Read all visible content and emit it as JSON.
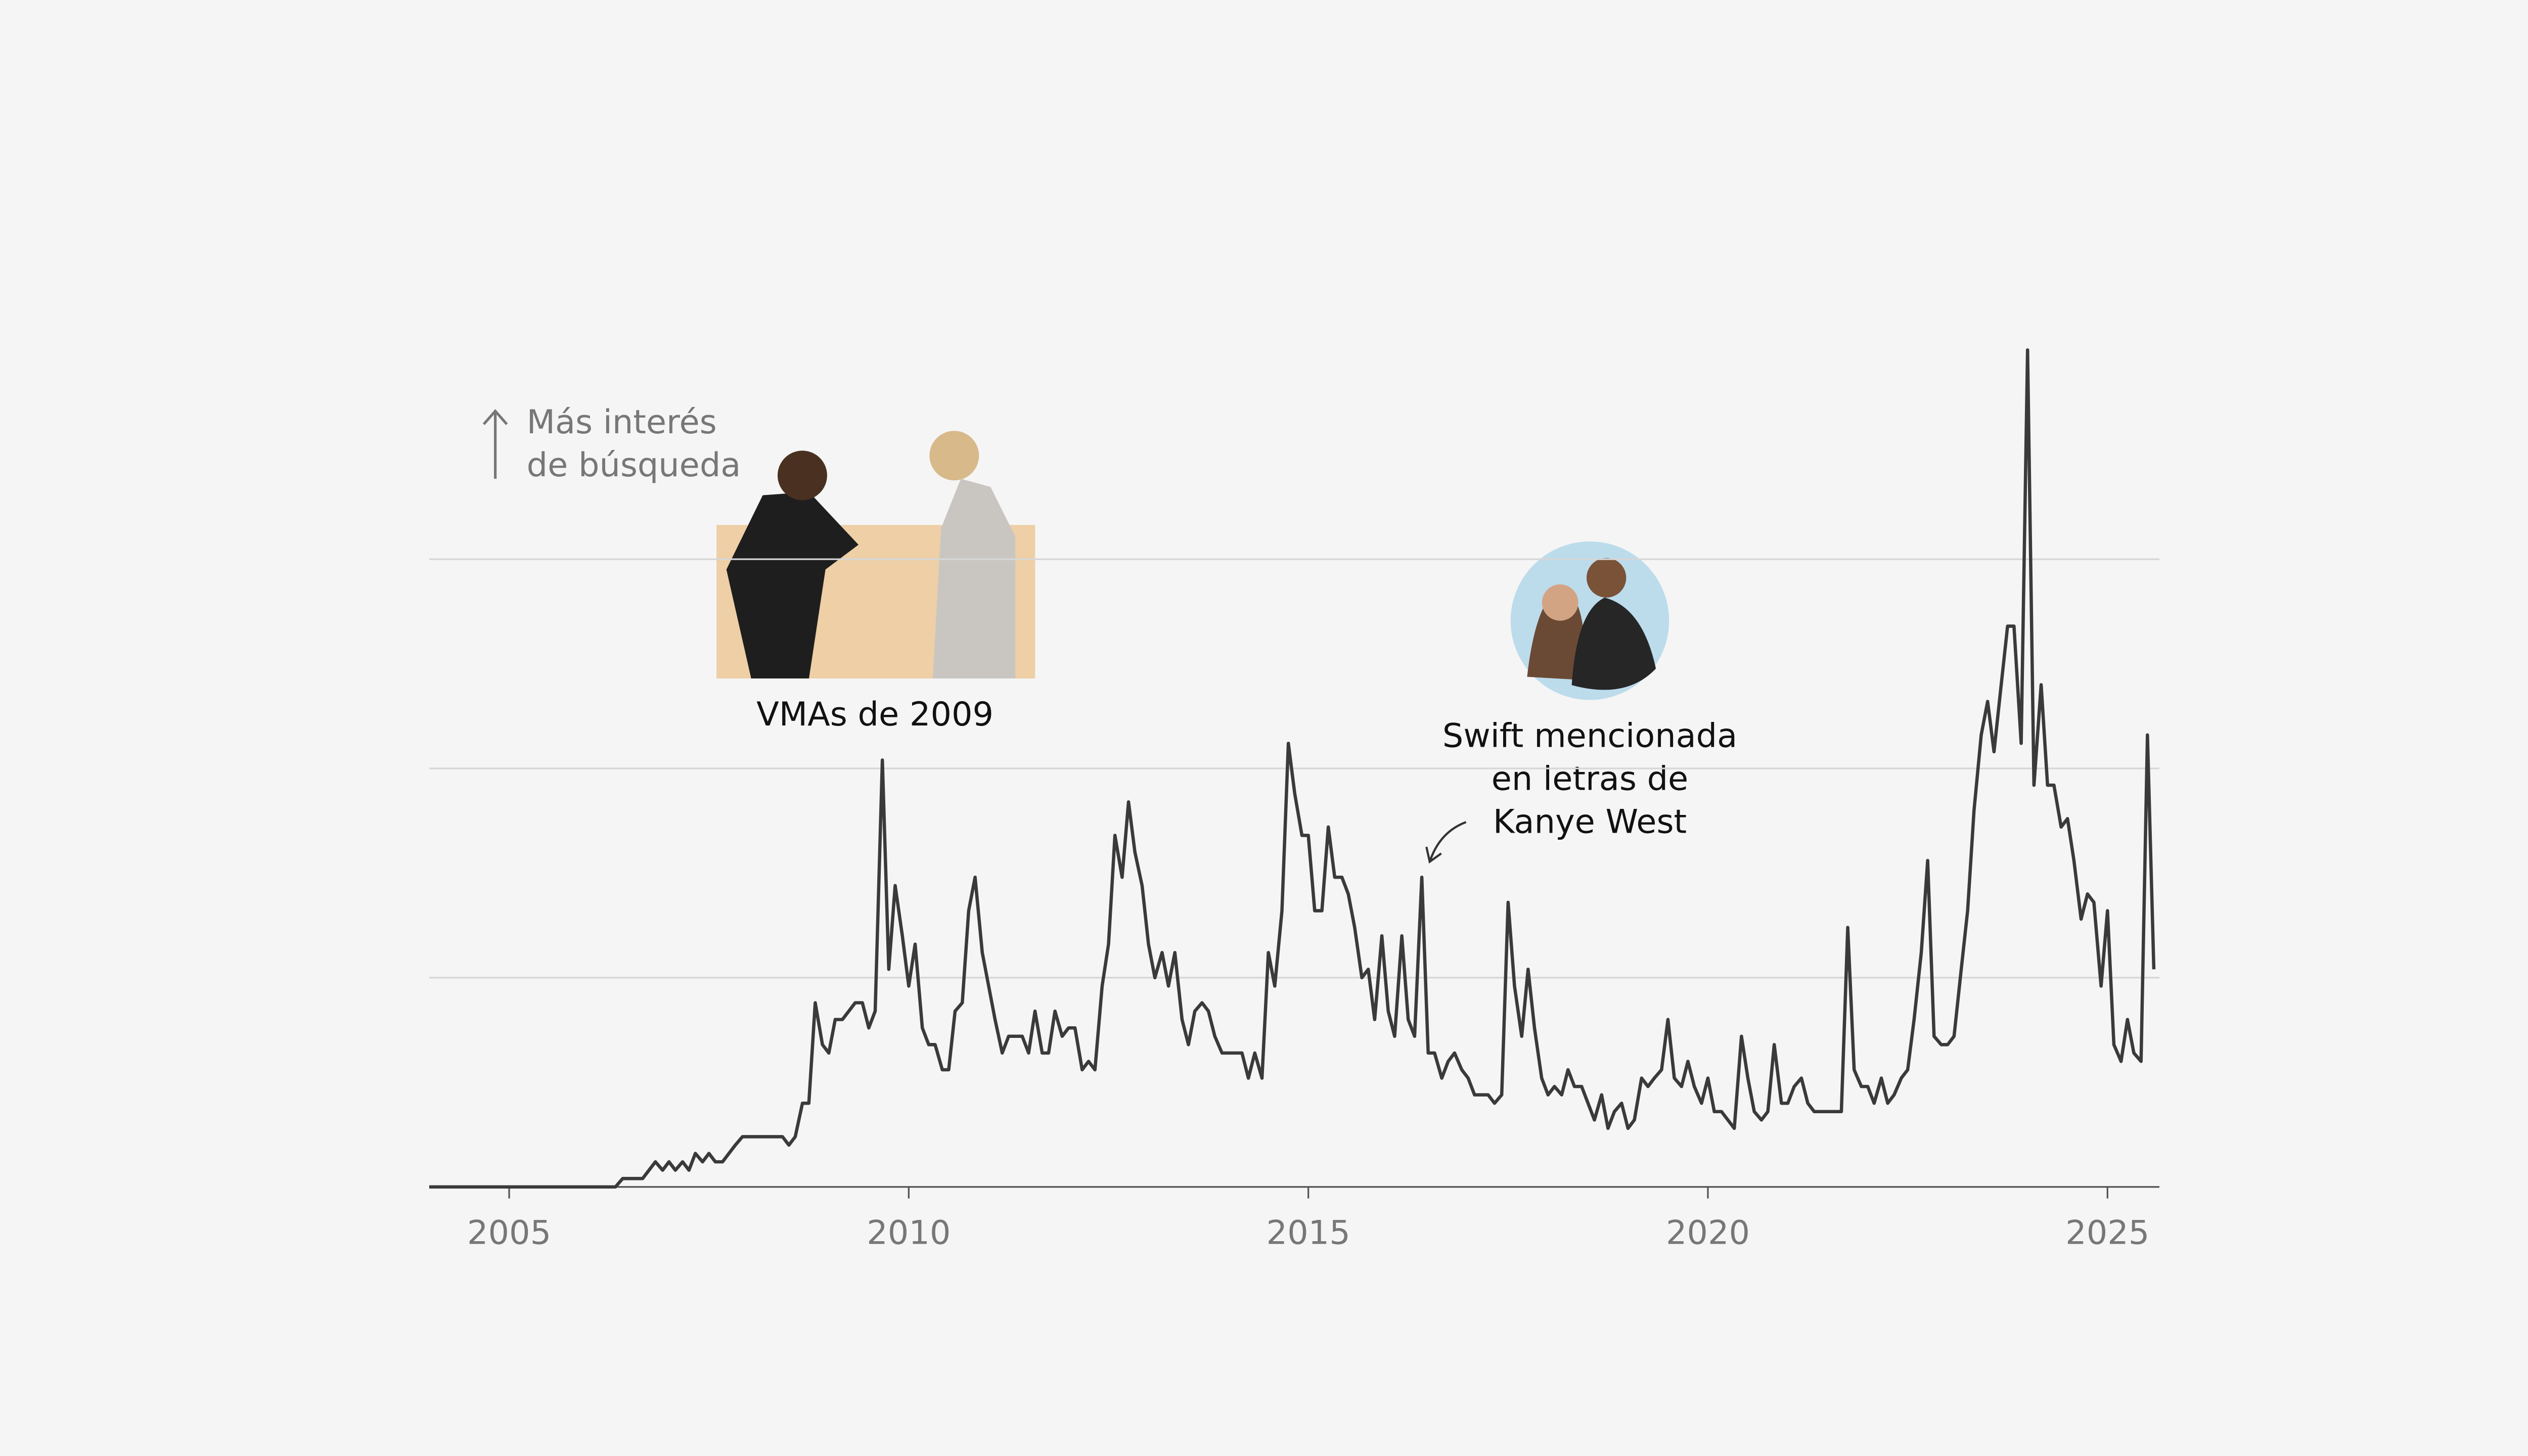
{
  "chart_data": {
    "type": "line",
    "annotations": {
      "axis_note": [
        "Más interés",
        "de búsqueda"
      ],
      "vmas": "VMAs de 2009",
      "lyrics": [
        "Swift mencionada",
        "en letras de",
        "Kanye West"
      ]
    },
    "color": "#3a3a3a",
    "xlim": [
      2004,
      2025.65
    ],
    "xticks": [
      2005,
      2010,
      2015,
      2020,
      2025
    ],
    "ylim": [
      0,
      100
    ],
    "yticks": [
      0,
      25,
      50,
      75
    ],
    "grid": true,
    "x": [
      2004,
      2004.08,
      2004.17,
      2004.25,
      2004.33,
      2004.42,
      2004.5,
      2004.58,
      2004.67,
      2004.75,
      2004.83,
      2004.92,
      2005,
      2005.08,
      2005.17,
      2005.25,
      2005.33,
      2005.42,
      2005.5,
      2005.58,
      2005.67,
      2005.75,
      2005.83,
      2005.92,
      2006,
      2006.08,
      2006.17,
      2006.25,
      2006.33,
      2006.42,
      2006.5,
      2006.58,
      2006.67,
      2006.75,
      2006.83,
      2006.92,
      2007,
      2007.08,
      2007.17,
      2007.25,
      2007.33,
      2007.42,
      2007.5,
      2007.58,
      2007.67,
      2007.75,
      2007.83,
      2007.92,
      2008,
      2008.08,
      2008.17,
      2008.25,
      2008.33,
      2008.42,
      2008.5,
      2008.58,
      2008.67,
      2008.75,
      2008.83,
      2008.92,
      2009,
      2009.08,
      2009.17,
      2009.25,
      2009.33,
      2009.42,
      2009.5,
      2009.58,
      2009.67,
      2009.75,
      2009.83,
      2009.92,
      2010,
      2010.08,
      2010.17,
      2010.25,
      2010.33,
      2010.42,
      2010.5,
      2010.58,
      2010.67,
      2010.75,
      2010.83,
      2010.92,
      2011,
      2011.08,
      2011.17,
      2011.25,
      2011.33,
      2011.42,
      2011.5,
      2011.58,
      2011.67,
      2011.75,
      2011.83,
      2011.92,
      2012,
      2012.08,
      2012.17,
      2012.25,
      2012.33,
      2012.42,
      2012.5,
      2012.58,
      2012.67,
      2012.75,
      2012.83,
      2012.92,
      2013,
      2013.08,
      2013.17,
      2013.25,
      2013.33,
      2013.42,
      2013.5,
      2013.58,
      2013.67,
      2013.75,
      2013.83,
      2013.92,
      2014,
      2014.08,
      2014.17,
      2014.25,
      2014.33,
      2014.42,
      2014.5,
      2014.58,
      2014.67,
      2014.75,
      2014.83,
      2014.92,
      2015,
      2015.08,
      2015.17,
      2015.25,
      2015.33,
      2015.42,
      2015.5,
      2015.58,
      2015.67,
      2015.75,
      2015.83,
      2015.92,
      2016,
      2016.08,
      2016.17,
      2016.25,
      2016.33,
      2016.42,
      2016.5,
      2016.58,
      2016.67,
      2016.75,
      2016.83,
      2016.92,
      2017,
      2017.08,
      2017.17,
      2017.25,
      2017.33,
      2017.42,
      2017.5,
      2017.58,
      2017.67,
      2017.75,
      2017.83,
      2017.92,
      2018,
      2018.08,
      2018.17,
      2018.25,
      2018.33,
      2018.42,
      2018.5,
      2018.58,
      2018.67,
      2018.75,
      2018.83,
      2018.92,
      2019,
      2019.08,
      2019.17,
      2019.25,
      2019.33,
      2019.42,
      2019.5,
      2019.58,
      2019.67,
      2019.75,
      2019.83,
      2019.92,
      2020,
      2020.08,
      2020.17,
      2020.25,
      2020.33,
      2020.42,
      2020.5,
      2020.58,
      2020.67,
      2020.75,
      2020.83,
      2020.92,
      2021,
      2021.08,
      2021.17,
      2021.25,
      2021.33,
      2021.42,
      2021.5,
      2021.58,
      2021.67,
      2021.75,
      2021.83,
      2021.92,
      2022,
      2022.08,
      2022.17,
      2022.25,
      2022.33,
      2022.42,
      2022.5,
      2022.58,
      2022.67,
      2022.75,
      2022.83,
      2022.92,
      2023,
      2023.08,
      2023.17,
      2023.25,
      2023.33,
      2023.42,
      2023.5,
      2023.58,
      2023.67,
      2023.75,
      2023.83,
      2023.92,
      2024,
      2024.08,
      2024.17,
      2024.25,
      2024.33,
      2024.42,
      2024.5,
      2024.58,
      2024.67,
      2024.75,
      2024.83,
      2024.92,
      2025,
      2025.08,
      2025.17,
      2025.25,
      2025.33,
      2025.42,
      2025.5,
      2025.58
    ],
    "values": [
      0,
      0,
      0,
      0,
      0,
      0,
      0,
      0,
      0,
      0,
      0,
      0,
      0,
      0,
      0,
      0,
      0,
      0,
      0,
      0,
      0,
      0,
      0,
      0,
      0,
      0,
      0,
      0,
      0,
      1,
      1,
      1,
      1,
      2,
      3,
      2,
      3,
      2,
      3,
      2,
      4,
      3,
      4,
      3,
      3,
      4,
      5,
      6,
      6,
      6,
      6,
      6,
      6,
      6,
      5,
      6,
      10,
      10,
      22,
      17,
      16,
      20,
      20,
      21,
      22,
      22,
      19,
      21,
      51,
      26,
      36,
      30,
      24,
      29,
      19,
      17,
      17,
      14,
      14,
      21,
      22,
      33,
      37,
      28,
      24,
      20,
      16,
      18,
      18,
      18,
      16,
      21,
      16,
      16,
      21,
      18,
      19,
      19,
      14,
      15,
      14,
      24,
      29,
      42,
      37,
      46,
      40,
      36,
      29,
      25,
      28,
      24,
      28,
      20,
      17,
      21,
      22,
      21,
      18,
      16,
      16,
      16,
      16,
      13,
      16,
      13,
      28,
      24,
      33,
      53,
      47,
      42,
      42,
      33,
      33,
      43,
      37,
      37,
      35,
      31,
      25,
      26,
      20,
      30,
      21,
      18,
      30,
      20,
      18,
      37,
      16,
      16,
      13,
      15,
      16,
      14,
      13,
      11,
      11,
      11,
      10,
      11,
      34,
      24,
      18,
      26,
      19,
      13,
      11,
      12,
      11,
      14,
      12,
      12,
      10,
      8,
      11,
      7,
      9,
      10,
      7,
      8,
      13,
      12,
      13,
      14,
      20,
      13,
      12,
      15,
      12,
      10,
      13,
      9,
      9,
      8,
      7,
      18,
      13,
      9,
      8,
      9,
      17,
      10,
      10,
      12,
      13,
      10,
      9,
      9,
      9,
      9,
      9,
      31,
      14,
      12,
      12,
      10,
      13,
      10,
      11,
      13,
      14,
      20,
      28,
      39,
      18,
      17,
      17,
      18,
      26,
      33,
      45,
      54,
      58,
      52,
      60,
      67,
      67,
      53,
      100,
      48,
      60,
      48,
      48,
      43,
      44,
      39,
      32,
      35,
      34,
      24,
      33,
      17,
      15,
      20,
      16,
      15,
      54,
      26
    ]
  }
}
